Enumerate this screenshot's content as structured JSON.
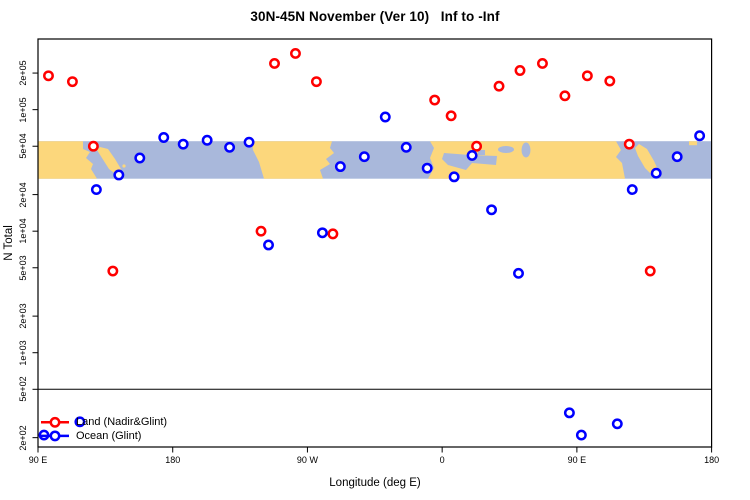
{
  "page": {
    "background": "#ffffff"
  },
  "chart_data": {
    "type": "scatter",
    "title": "30N-45N November (Ver 10)   Inf to -Inf",
    "xlabel": "Longitude (deg E)",
    "ylabel": "N Total",
    "x_axis": {
      "min": 90,
      "max": 540,
      "ticks": [
        {
          "value": 90,
          "label": "90 E"
        },
        {
          "value": 180,
          "label": "180"
        },
        {
          "value": 270,
          "label": "90 W"
        },
        {
          "value": 360,
          "label": "0"
        },
        {
          "value": 450,
          "label": "90 E"
        },
        {
          "value": 540,
          "label": "180"
        }
      ]
    },
    "y_axis": {
      "scale": "log10",
      "ticks": [
        {
          "value": 200000,
          "label": "2e+05"
        },
        {
          "value": 100000,
          "label": "1e+05"
        },
        {
          "value": 50000,
          "label": "5e+04"
        },
        {
          "value": 20000,
          "label": "2e+04"
        },
        {
          "value": 10000,
          "label": "1e+04"
        },
        {
          "value": 5000,
          "label": "5e+03"
        },
        {
          "value": 2000,
          "label": "2e+03"
        },
        {
          "value": 1000,
          "label": "1e+03"
        },
        {
          "value": 500,
          "label": "5e+02"
        },
        {
          "value": 200,
          "label": "2e+02"
        }
      ]
    },
    "reference_line": {
      "value": 500,
      "color": "#000000"
    },
    "map_band": {
      "top_value": 55000,
      "bottom_value": 27000,
      "land_color": "#FCD77C",
      "ocean_color": "#A9B8DB"
    },
    "series": [
      {
        "name": "Land (Nadir&Glint)",
        "color": "#FF0000",
        "marker": "open-circle",
        "points": [
          [
            97,
            190000
          ],
          [
            113,
            170000
          ],
          [
            127,
            50000
          ],
          [
            140,
            4700
          ],
          [
            239,
            10000
          ],
          [
            248,
            240000
          ],
          [
            262,
            290000
          ],
          [
            276,
            170000
          ],
          [
            287,
            9500
          ],
          [
            355,
            120000
          ],
          [
            366,
            89000
          ],
          [
            383,
            50000
          ],
          [
            398,
            156000
          ],
          [
            412,
            210000
          ],
          [
            427,
            240000
          ],
          [
            442,
            130000
          ],
          [
            457,
            190000
          ],
          [
            472,
            172000
          ],
          [
            485,
            52000
          ],
          [
            499,
            4700
          ]
        ]
      },
      {
        "name": "Ocean (Glint)",
        "color": "#0000FF",
        "marker": "open-circle",
        "points": [
          [
            94,
            210
          ],
          [
            118,
            270
          ],
          [
            129,
            22000
          ],
          [
            144,
            29000
          ],
          [
            158,
            40000
          ],
          [
            174,
            59000
          ],
          [
            187,
            52000
          ],
          [
            203,
            56000
          ],
          [
            218,
            49000
          ],
          [
            231,
            54000
          ],
          [
            244,
            7700
          ],
          [
            280,
            9700
          ],
          [
            292,
            34000
          ],
          [
            308,
            41000
          ],
          [
            322,
            87000
          ],
          [
            336,
            49000
          ],
          [
            350,
            33000
          ],
          [
            368,
            28000
          ],
          [
            380,
            42000
          ],
          [
            393,
            15000
          ],
          [
            411,
            4500
          ],
          [
            445,
            320
          ],
          [
            453,
            210
          ],
          [
            477,
            260
          ],
          [
            487,
            22000
          ],
          [
            503,
            30000
          ],
          [
            517,
            41000
          ],
          [
            532,
            61000
          ]
        ]
      }
    ],
    "legend": {
      "position": "bottom-left",
      "entries": [
        "Land (Nadir&Glint)",
        "Ocean (Glint)"
      ]
    }
  }
}
